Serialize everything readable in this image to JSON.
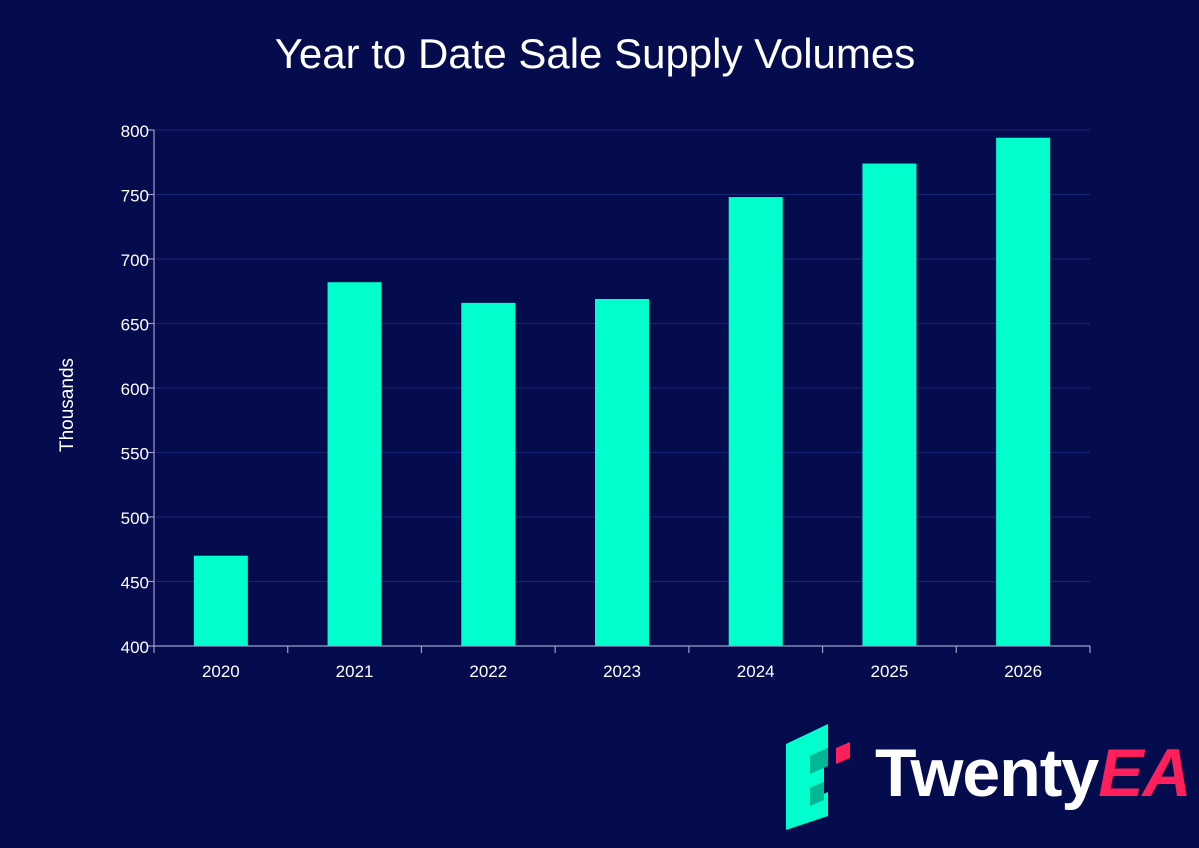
{
  "colors": {
    "background": "#050c4e",
    "bar": "#00ffcc",
    "grid": "#1b2578",
    "axis": "#9aa0c8",
    "text": "#ffffff",
    "brand_accent": "#ff1f5a"
  },
  "chart_data": {
    "type": "bar",
    "title": "Year to Date Sale Supply Volumes",
    "xlabel": "",
    "ylabel": "Thousands",
    "categories": [
      "2020",
      "2021",
      "2022",
      "2023",
      "2024",
      "2025",
      "2026"
    ],
    "values": [
      470,
      682,
      666,
      669,
      748,
      774,
      794
    ],
    "ylim": [
      400,
      800
    ],
    "yticks": [
      "400",
      "450",
      "500",
      "550",
      "600",
      "650",
      "700",
      "750",
      "800"
    ],
    "grid": true,
    "legend": "none"
  },
  "brand": {
    "name_part1": "Twenty",
    "name_part2": "EA",
    "logo_icon": "twentyea-logo-icon"
  }
}
